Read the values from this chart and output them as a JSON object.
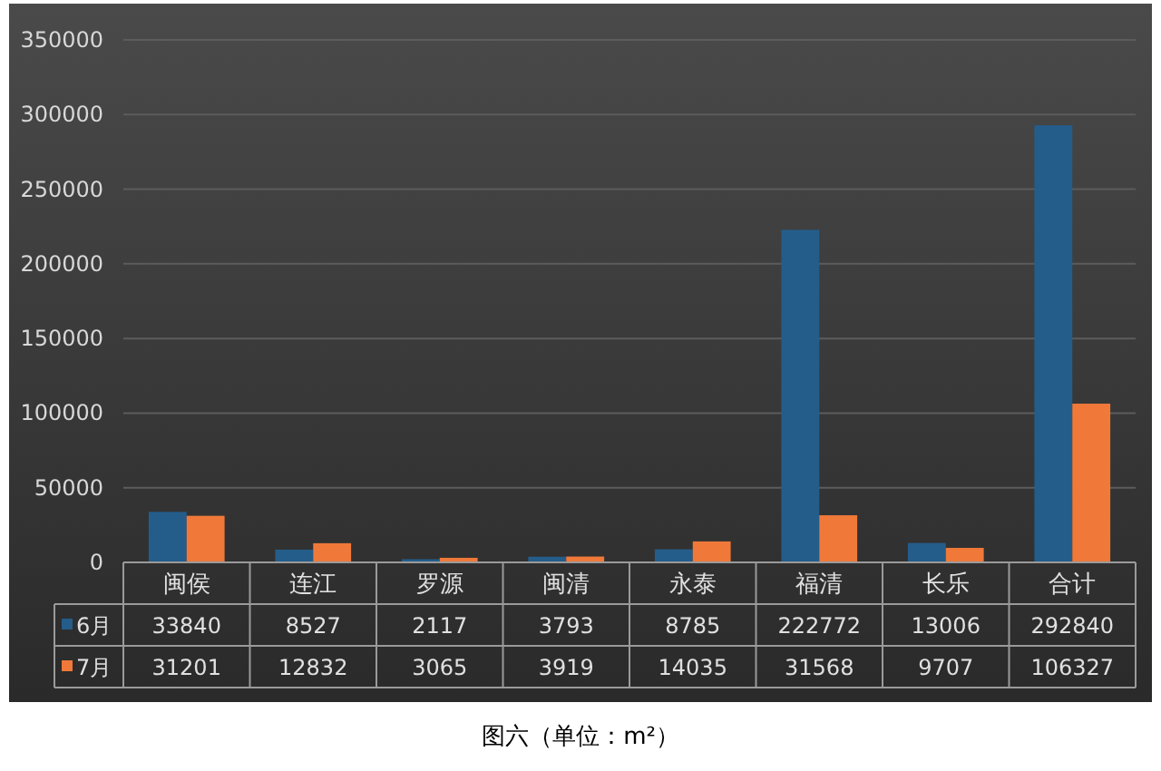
{
  "chart_data": {
    "type": "bar",
    "categories": [
      "闽侯",
      "连江",
      "罗源",
      "闽清",
      "永泰",
      "福清",
      "长乐",
      "合计"
    ],
    "series": [
      {
        "name": "6月",
        "color": "#245d8a",
        "values": [
          33840,
          8527,
          2117,
          3793,
          8785,
          222772,
          13006,
          292840
        ]
      },
      {
        "name": "7月",
        "color": "#f0793a",
        "values": [
          31201,
          12832,
          3065,
          3919,
          14035,
          31568,
          9707,
          106327
        ]
      }
    ],
    "ylim": [
      0,
      350000
    ],
    "yticks": [
      0,
      50000,
      100000,
      150000,
      200000,
      250000,
      300000,
      350000
    ],
    "grid": "y",
    "legend": "bottom",
    "data_labels": true,
    "annotations": [
      "图六（单位：m²）"
    ]
  }
}
